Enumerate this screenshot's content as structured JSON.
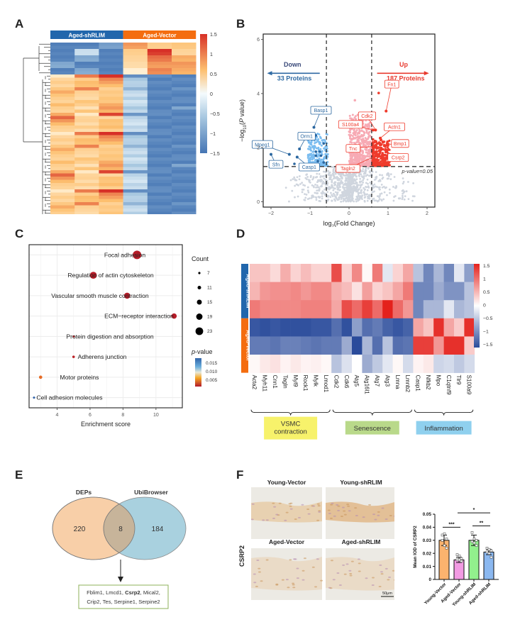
{
  "panels": {
    "A": "A",
    "B": "B",
    "C": "C",
    "D": "D",
    "E": "E",
    "F": "F"
  },
  "chart_data": [
    {
      "id": "A",
      "type": "heatmap",
      "title": "",
      "column_groups": [
        {
          "name": "Aged-shRLIM",
          "color": "#2166ac",
          "columns": 3
        },
        {
          "name": "Aged-Vector",
          "color": "#f46d0f",
          "columns": 3
        }
      ],
      "colorbar": {
        "min": -1.5,
        "max": 1.5,
        "ticks": [
          "1.5",
          "1",
          "0.5",
          "0",
          "−0.5",
          "−1",
          "−1.5"
        ],
        "low_color": "#4575b4",
        "mid_color": "#ffffff",
        "high_color": "#d73027"
      },
      "rows_up_in_vector": [
        [
          -1.4,
          -1.4,
          -1.1,
          1.0,
          0.6,
          0.7
        ],
        [
          -1.4,
          -0.3,
          -1.4,
          0.6,
          1.5,
          0.5
        ],
        [
          -1.4,
          -1.0,
          -1.4,
          0.5,
          1.2,
          0.9
        ],
        [
          -1.0,
          -1.4,
          -1.4,
          0.4,
          1.0,
          1.0
        ],
        [
          -1.4,
          -1.0,
          -1.4,
          0.1,
          1.1,
          0.9
        ]
      ],
      "rows_up_in_shrlim": [
        [
          0.2,
          1.2,
          1.5,
          -1.4,
          -1.3,
          -1.4
        ],
        [
          0.5,
          0.6,
          1.2,
          -0.7,
          -1.4,
          -1.4
        ],
        [
          0.6,
          0.9,
          1.0,
          -0.5,
          -1.4,
          -1.4
        ],
        [
          0.5,
          0.8,
          0.8,
          -0.6,
          -1.4,
          -1.4
        ],
        [
          0.7,
          1.1,
          0.6,
          -0.9,
          -1.4,
          -1.3
        ],
        [
          0.9,
          0.6,
          0.7,
          -0.4,
          -1.4,
          -1.4
        ],
        [
          0.8,
          0.5,
          0.6,
          -0.3,
          -1.4,
          -1.4
        ],
        [
          0.6,
          0.4,
          0.8,
          -0.6,
          -1.4,
          -1.4
        ],
        [
          0.5,
          0.8,
          0.7,
          -0.2,
          -1.4,
          -1.3
        ],
        [
          0.9,
          0.6,
          0.9,
          -0.4,
          -1.4,
          -1.4
        ],
        [
          0.6,
          0.3,
          1.1,
          -0.7,
          -1.4,
          -1.1
        ],
        [
          0.5,
          0.8,
          0.9,
          -0.4,
          -1.4,
          -1.4
        ],
        [
          1.0,
          0.2,
          1.4,
          -1.3,
          -1.3,
          -1.4
        ],
        [
          1.3,
          0.5,
          0.5,
          -0.5,
          -1.4,
          -1.4
        ],
        [
          1.0,
          0.6,
          0.8,
          -0.3,
          -1.4,
          -1.4
        ],
        [
          0.9,
          0.4,
          0.7,
          -0.2,
          -1.4,
          -1.4
        ],
        [
          0.6,
          0.6,
          0.9,
          -0.5,
          -1.4,
          -1.4
        ],
        [
          0.5,
          0.4,
          0.6,
          -0.3,
          -1.4,
          -1.4
        ]
      ]
    },
    {
      "id": "B",
      "type": "scatter",
      "title": "",
      "xlabel": "log2(Fold Change)",
      "ylabel": "−log10(P value)",
      "xlim": [
        -2.2,
        2.2
      ],
      "ylim": [
        -0.2,
        6.2
      ],
      "xticks": [
        -2,
        -1,
        0,
        1,
        2
      ],
      "yticks": [
        0,
        2,
        4,
        6
      ],
      "fc_threshold": 0.58,
      "p_threshold_y": 1.3,
      "p_threshold_label": "p-value=0.05",
      "down": {
        "label": "Down",
        "count_label": "33 Proteins",
        "color": "#2f6aa3"
      },
      "up": {
        "label": "Up",
        "count_label": "187 Proteins",
        "color": "#e83a2f"
      },
      "colors": {
        "ns": "#cfd5de",
        "down_strong": "#2b67a0",
        "down_weak": "#7bbdf0",
        "up_weak": "#f7aab4",
        "up_strong": "#ef3b2c"
      },
      "labeled_points": [
        {
          "name": "Fn1",
          "x": 0.95,
          "y": 3.35,
          "group": "up"
        },
        {
          "name": "Cdk2",
          "x": 0.68,
          "y": 2.65,
          "group": "up"
        },
        {
          "name": "S100a4",
          "x": 0.62,
          "y": 2.65,
          "group": "up"
        },
        {
          "name": "Actn1",
          "x": 0.8,
          "y": 2.35,
          "group": "up"
        },
        {
          "name": "Bmp1",
          "x": 0.8,
          "y": 2.1,
          "group": "up"
        },
        {
          "name": "Tnc",
          "x": 0.65,
          "y": 2.05,
          "group": "up"
        },
        {
          "name": "Tagln2",
          "x": 0.7,
          "y": 1.7,
          "group": "up"
        },
        {
          "name": "Csrp2",
          "x": 0.75,
          "y": 2.0,
          "group": "up"
        },
        {
          "name": "Basp1",
          "x": -0.9,
          "y": 2.75,
          "group": "down"
        },
        {
          "name": "Orm1",
          "x": -1.27,
          "y": 1.95,
          "group": "down"
        },
        {
          "name": "Mpeg1",
          "x": -1.53,
          "y": 1.75,
          "group": "down"
        },
        {
          "name": "Sfn",
          "x": -2.0,
          "y": 1.75,
          "group": "down"
        },
        {
          "name": "Casp1",
          "x": -1.33,
          "y": 1.65,
          "group": "down"
        }
      ],
      "extra_points": [
        {
          "x": 0.76,
          "y": 4.02,
          "group": "up"
        },
        {
          "x": 0.15,
          "y": 3.75,
          "group": "upweak"
        },
        {
          "x": -1.0,
          "y": 2.5,
          "group": "down"
        },
        {
          "x": -0.85,
          "y": 2.45,
          "group": "down"
        },
        {
          "x": -0.65,
          "y": 2.15,
          "group": "down"
        },
        {
          "x": -0.85,
          "y": 1.85,
          "group": "down"
        },
        {
          "x": -0.75,
          "y": 1.85,
          "group": "down"
        },
        {
          "x": -0.85,
          "y": 1.7,
          "group": "down"
        },
        {
          "x": -0.72,
          "y": 1.7,
          "group": "down"
        },
        {
          "x": -0.8,
          "y": 1.5,
          "group": "down"
        },
        {
          "x": -0.65,
          "y": 1.45,
          "group": "down"
        },
        {
          "x": -1.4,
          "y": 1.4,
          "group": "down"
        },
        {
          "x": -1.2,
          "y": 1.35,
          "group": "down"
        },
        {
          "x": -1.0,
          "y": 1.35,
          "group": "down"
        }
      ]
    },
    {
      "id": "C",
      "type": "scatter",
      "title": "",
      "xlabel": "Enrichment score",
      "xlim": [
        2.3,
        11.6
      ],
      "xticks": [
        4,
        6,
        8,
        10
      ],
      "terms": [
        {
          "name": "Focal adhesion",
          "x": 8.85,
          "count": 23,
          "p": 0.001
        },
        {
          "name": "Regulation of actin cytoskeleton",
          "x": 6.2,
          "count": 19,
          "p": 0.001
        },
        {
          "name": "Vascular smooth muscle contraction",
          "x": 8.25,
          "count": 17,
          "p": 0.001
        },
        {
          "name": "ECM−receptor interaction",
          "x": 11.1,
          "count": 15,
          "p": 0.001
        },
        {
          "name": "Protein digestion and absorption",
          "x": 5.0,
          "count": 7,
          "p": 0.002
        },
        {
          "name": "Adherens junction",
          "x": 5.0,
          "count": 8,
          "p": 0.002
        },
        {
          "name": "Motor proteins",
          "x": 3.0,
          "count": 10,
          "p": 0.006
        },
        {
          "name": "Cell adhesion molecules",
          "x": 2.6,
          "count": 7,
          "p": 0.018
        }
      ],
      "size_legend": {
        "title": "Count",
        "values": [
          7,
          11,
          15,
          19,
          23
        ]
      },
      "color_legend": {
        "title": "p-value",
        "ticks": [
          "0.015",
          "0.010",
          "0.005"
        ]
      }
    },
    {
      "id": "D",
      "type": "heatmap",
      "row_groups": [
        {
          "name": "Aged-shRLIM",
          "color": "#2166ac",
          "rows": 3
        },
        {
          "name": "Aged-Vector",
          "color": "#f46d0f",
          "rows": 3
        }
      ],
      "columns": [
        "Acta2",
        "Myh11",
        "Cnn1",
        "Tagln",
        "Myl9",
        "Rock1",
        "Mylk",
        "Lmod1",
        "Cdk2",
        "Cdk6",
        "Atg5",
        "Atg16l1",
        "Atg7",
        "Atg3",
        "Lmna",
        "Lmnb2",
        "Casp1",
        "Nfkb2",
        "Mpo",
        "C1qtnf9",
        "Tlr9",
        "S100a9"
      ],
      "column_groups": [
        {
          "name": "VSMC\ncontraction",
          "from": 0,
          "to": 7,
          "color": "#f7f26b"
        },
        {
          "name": "Senescence",
          "from": 8,
          "to": 15,
          "color": "#b9d98a"
        },
        {
          "name": "Inflammation",
          "from": 16,
          "to": 21,
          "color": "#8fd0ee"
        }
      ],
      "colorbar": {
        "min": -1.5,
        "max": 1.5,
        "ticks": [
          "1.5",
          "1",
          "0.5",
          "0",
          "−0.5",
          "−1",
          "−1.5"
        ],
        "low_color": "#2a4b9b",
        "mid_color": "#ffffff",
        "high_color": "#e4211c"
      },
      "values": [
        [
          0.4,
          0.4,
          0.25,
          0.55,
          0.3,
          0.45,
          0.3,
          0.3,
          1.2,
          0.3,
          0.8,
          0.05,
          0.9,
          -0.2,
          0.3,
          0.6,
          -0.5,
          -1.0,
          -0.6,
          -1.0,
          -0.2,
          -0.8
        ],
        [
          0.5,
          0.7,
          0.75,
          0.75,
          0.8,
          0.7,
          0.8,
          0.8,
          0.55,
          0.45,
          0.2,
          0.65,
          0.3,
          0.4,
          0.6,
          0.9,
          -1.0,
          -1.0,
          -0.7,
          -0.9,
          -0.9,
          -0.5
        ],
        [
          0.9,
          0.8,
          0.8,
          0.8,
          0.8,
          0.85,
          0.85,
          0.85,
          0.6,
          1.2,
          1.0,
          1.3,
          1.0,
          1.5,
          1.0,
          0.7,
          -1.0,
          -0.6,
          -0.6,
          -0.2,
          -0.6,
          -0.5
        ],
        [
          -1.4,
          -1.45,
          -1.4,
          -1.45,
          -1.45,
          -1.45,
          -1.4,
          -1.4,
          -1.2,
          -1.45,
          -0.8,
          -1.2,
          -1.1,
          -1.3,
          -1.4,
          -1.3,
          0.6,
          0.4,
          1.4,
          0.6,
          0.35,
          1.4
        ],
        [
          -1.1,
          -1.1,
          -1.15,
          -1.05,
          -1.05,
          -1.1,
          -1.15,
          -1.1,
          -1.1,
          -0.7,
          -1.5,
          -0.6,
          -1.2,
          -0.5,
          -1.2,
          -1.15,
          1.3,
          1.3,
          0.7,
          1.4,
          1.4,
          0.35
        ],
        [
          0.05,
          0.15,
          0.2,
          0.08,
          0.15,
          0.08,
          0.1,
          0.05,
          -0.5,
          -0.25,
          0.0,
          -0.7,
          -0.45,
          -0.2,
          0.05,
          -0.3,
          0.08,
          0.15,
          -0.35,
          -0.3,
          -0.45,
          -0.3
        ]
      ]
    },
    {
      "id": "E",
      "type": "table",
      "sets": [
        {
          "name": "DEPs",
          "only": "220",
          "color": "#f8cfa8"
        },
        {
          "name": "UbiBrowser",
          "only": "184",
          "color": "#a9d1df"
        }
      ],
      "intersection": "8",
      "intersection_color": "#c7b49a",
      "genes_line1": [
        "Fblim1, Lmcd1, ",
        "Csrp2",
        ", Mical2,"
      ],
      "genes_line2": "Crip2, Tes, Serpine1, Serpine2"
    },
    {
      "id": "F",
      "type": "bar",
      "row_label": "CSRP2",
      "image_titles": [
        "Young-Vector",
        "Young-shRLIM",
        "Aged-Vector",
        "Aged-shRLIM"
      ],
      "scale_bar": "50μm",
      "ylabel": "Mean IOD of CSRP2",
      "ylim": [
        0,
        0.05
      ],
      "yticks": [
        "0",
        "0.01",
        "0.02",
        "0.03",
        "0.04",
        "0.05"
      ],
      "categories": [
        "Young-Vector",
        "Aged-Vector",
        "Young-shRLIM",
        "Aged-shRLIM"
      ],
      "values": [
        0.03,
        0.015,
        0.03,
        0.021
      ],
      "errors": [
        0.004,
        0.002,
        0.004,
        0.002
      ],
      "colors": [
        "#fbb36e",
        "#f29be3",
        "#92f08d",
        "#8bb8f0"
      ],
      "points": [
        [
          0.034,
          0.035,
          0.031,
          0.03,
          0.026,
          0.024
        ],
        [
          0.019,
          0.018,
          0.016,
          0.015,
          0.015,
          0.014
        ],
        [
          0.036,
          0.031,
          0.03,
          0.029,
          0.028,
          0.026
        ],
        [
          0.024,
          0.023,
          0.022,
          0.021,
          0.02,
          0.017
        ]
      ],
      "significance": [
        {
          "from": 0,
          "to": 1,
          "label": "***",
          "y": 0.04
        },
        {
          "from": 1,
          "to": 3,
          "label": "*",
          "y": 0.051
        },
        {
          "from": 2,
          "to": 3,
          "label": "**",
          "y": 0.041
        }
      ]
    }
  ]
}
